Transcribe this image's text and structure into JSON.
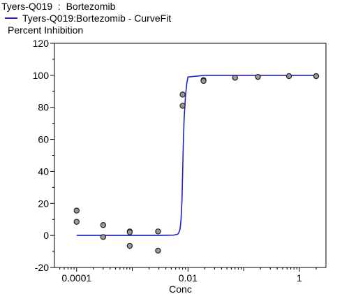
{
  "chart_data": {
    "type": "scatter",
    "title": "Tyers-Q019  :  Bortezomib",
    "xlabel": "Conc",
    "ylabel": "Percent Inhibition",
    "xscale": "log",
    "xlim": [
      4e-05,
      3
    ],
    "ylim": [
      -20,
      120
    ],
    "yticks": [
      -20,
      0,
      20,
      40,
      60,
      80,
      100,
      120
    ],
    "xticks": [
      0.0001,
      0.01,
      1
    ],
    "xtick_labels": [
      "0.0001",
      "0.01",
      "1"
    ],
    "legend": {
      "position": "top-left"
    },
    "grid": false,
    "series": [
      {
        "name": "Tyers-Q019:Bortezomib - CurveFit",
        "kind": "line",
        "color": "#1f1fcc",
        "x": [
          0.0001,
          0.003,
          0.0055,
          0.0065,
          0.0068,
          0.0072,
          0.0075,
          0.0078,
          0.008,
          0.0082,
          0.0085,
          0.009,
          0.0095,
          0.01,
          0.02,
          2.0
        ],
        "y": [
          0,
          0,
          0.2,
          0.7,
          1.5,
          4,
          10,
          22,
          38,
          55,
          72,
          87,
          95,
          99,
          100,
          100
        ]
      },
      {
        "name": "",
        "kind": "points",
        "color": "#999999",
        "x": [
          0.0001,
          0.0001,
          0.0003,
          0.0003,
          0.0009,
          0.0009,
          0.0009,
          0.0029,
          0.0029,
          0.008,
          0.008,
          0.019,
          0.019,
          0.07,
          0.18,
          0.65,
          2.0
        ],
        "y": [
          15.5,
          8.5,
          6.5,
          -1,
          2.5,
          -6.5,
          2,
          2.5,
          -9.5,
          81,
          88,
          97,
          96.5,
          98.5,
          99,
          99.5,
          99.5
        ]
      }
    ]
  }
}
